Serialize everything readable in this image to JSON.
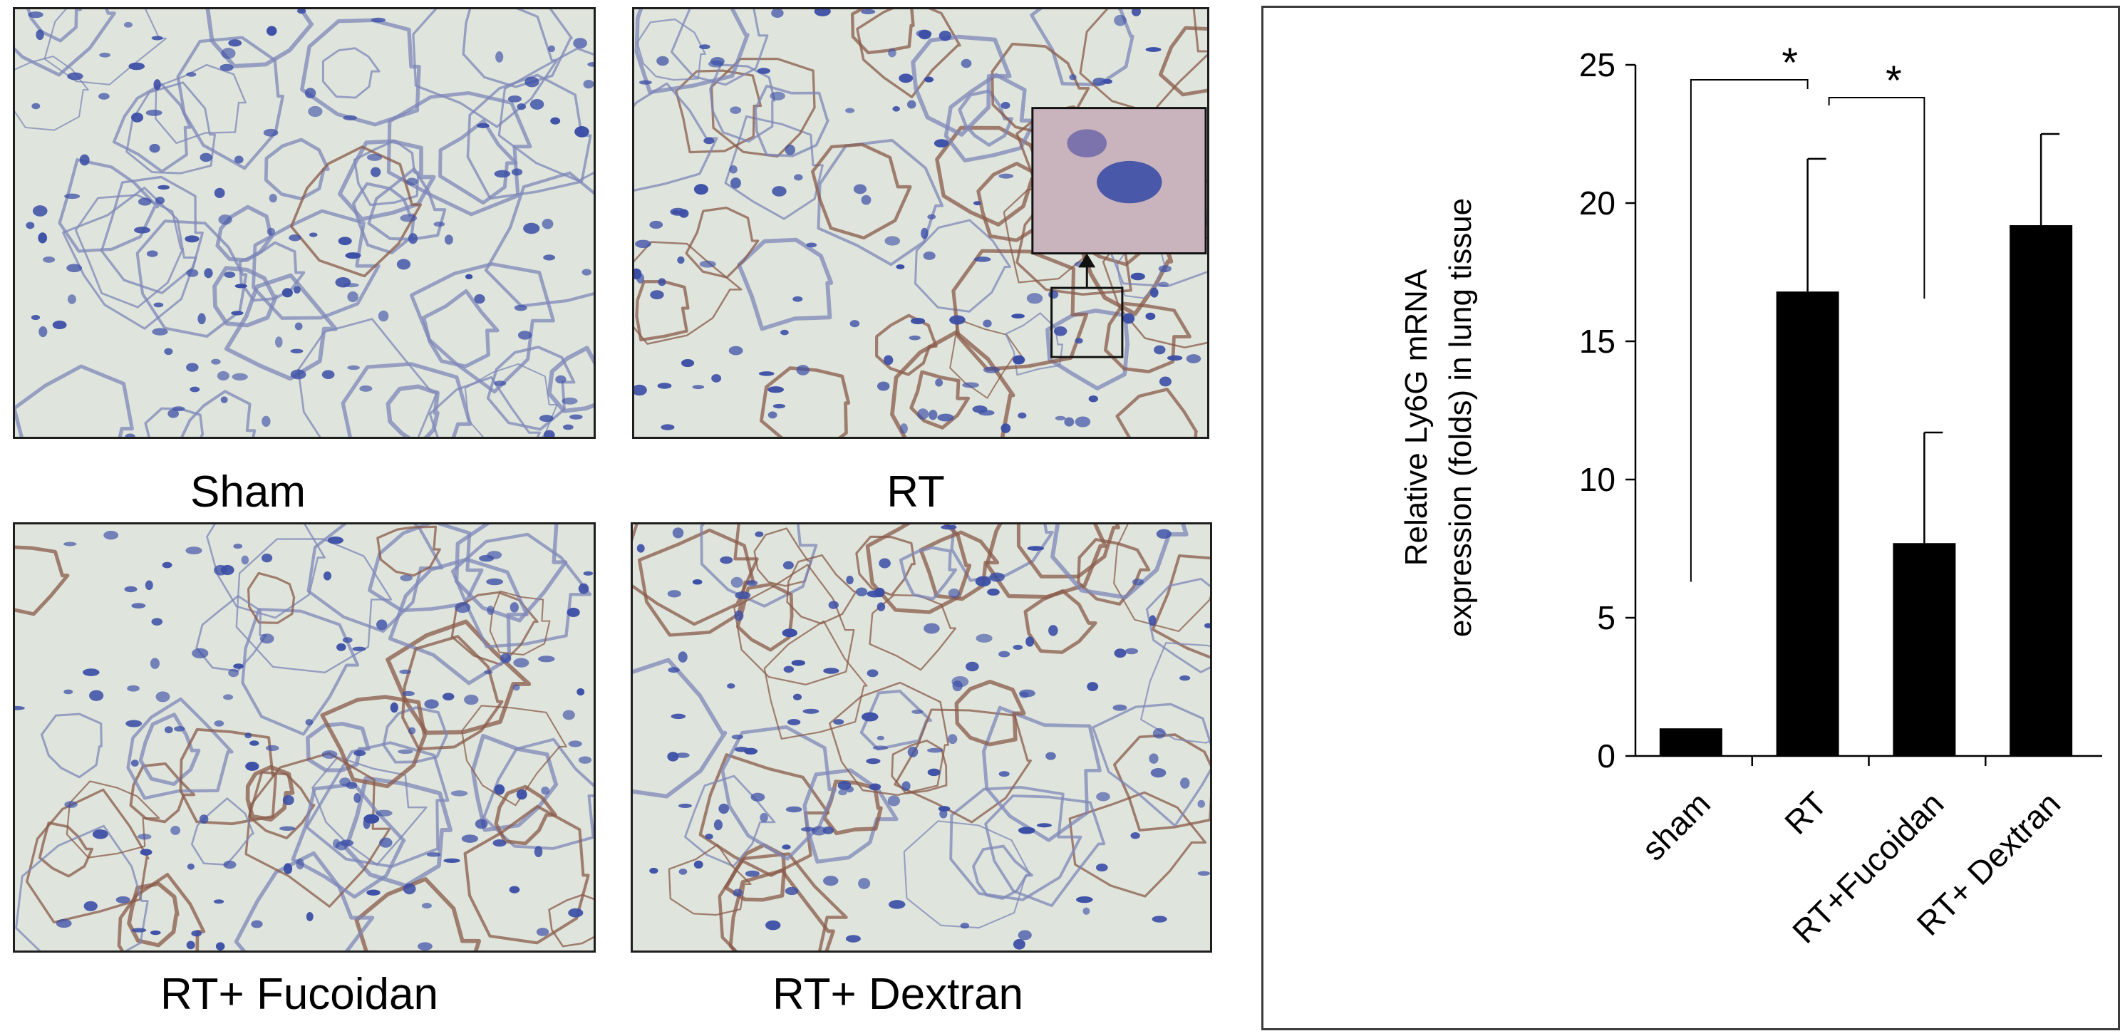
{
  "micrographs": [
    {
      "caption": "Sham"
    },
    {
      "caption": "RT"
    },
    {
      "caption": "RT+ Fucoidan"
    },
    {
      "caption": "RT+ Dextran"
    }
  ],
  "colors": {
    "background_tissue": "#dfe5dc",
    "hematoxylin": "#3b4ea6",
    "dab_stain": "#8a5a4a",
    "bar": "#000000"
  },
  "chart_data": {
    "type": "bar",
    "title": "",
    "xlabel": "",
    "ylabel": "Relative Ly6G mRNA expression (folds) in lung tissue",
    "ylabel_lines": [
      "Relative Ly6G mRNA",
      "expression (folds) in lung tissue"
    ],
    "categories": [
      "sham",
      "RT",
      "RT+Fucoidan",
      "RT+ Dextran"
    ],
    "values": [
      1.0,
      16.8,
      7.7,
      19.2
    ],
    "error_upper": [
      0.0,
      4.8,
      4.0,
      3.3
    ],
    "ylim": [
      0,
      25
    ],
    "yticks": [
      0,
      5,
      10,
      15,
      20,
      25
    ],
    "grid": false,
    "significance": [
      {
        "between": [
          "sham",
          "RT"
        ],
        "label": "*"
      },
      {
        "between": [
          "RT",
          "RT+Fucoidan"
        ],
        "label": "*"
      }
    ]
  }
}
